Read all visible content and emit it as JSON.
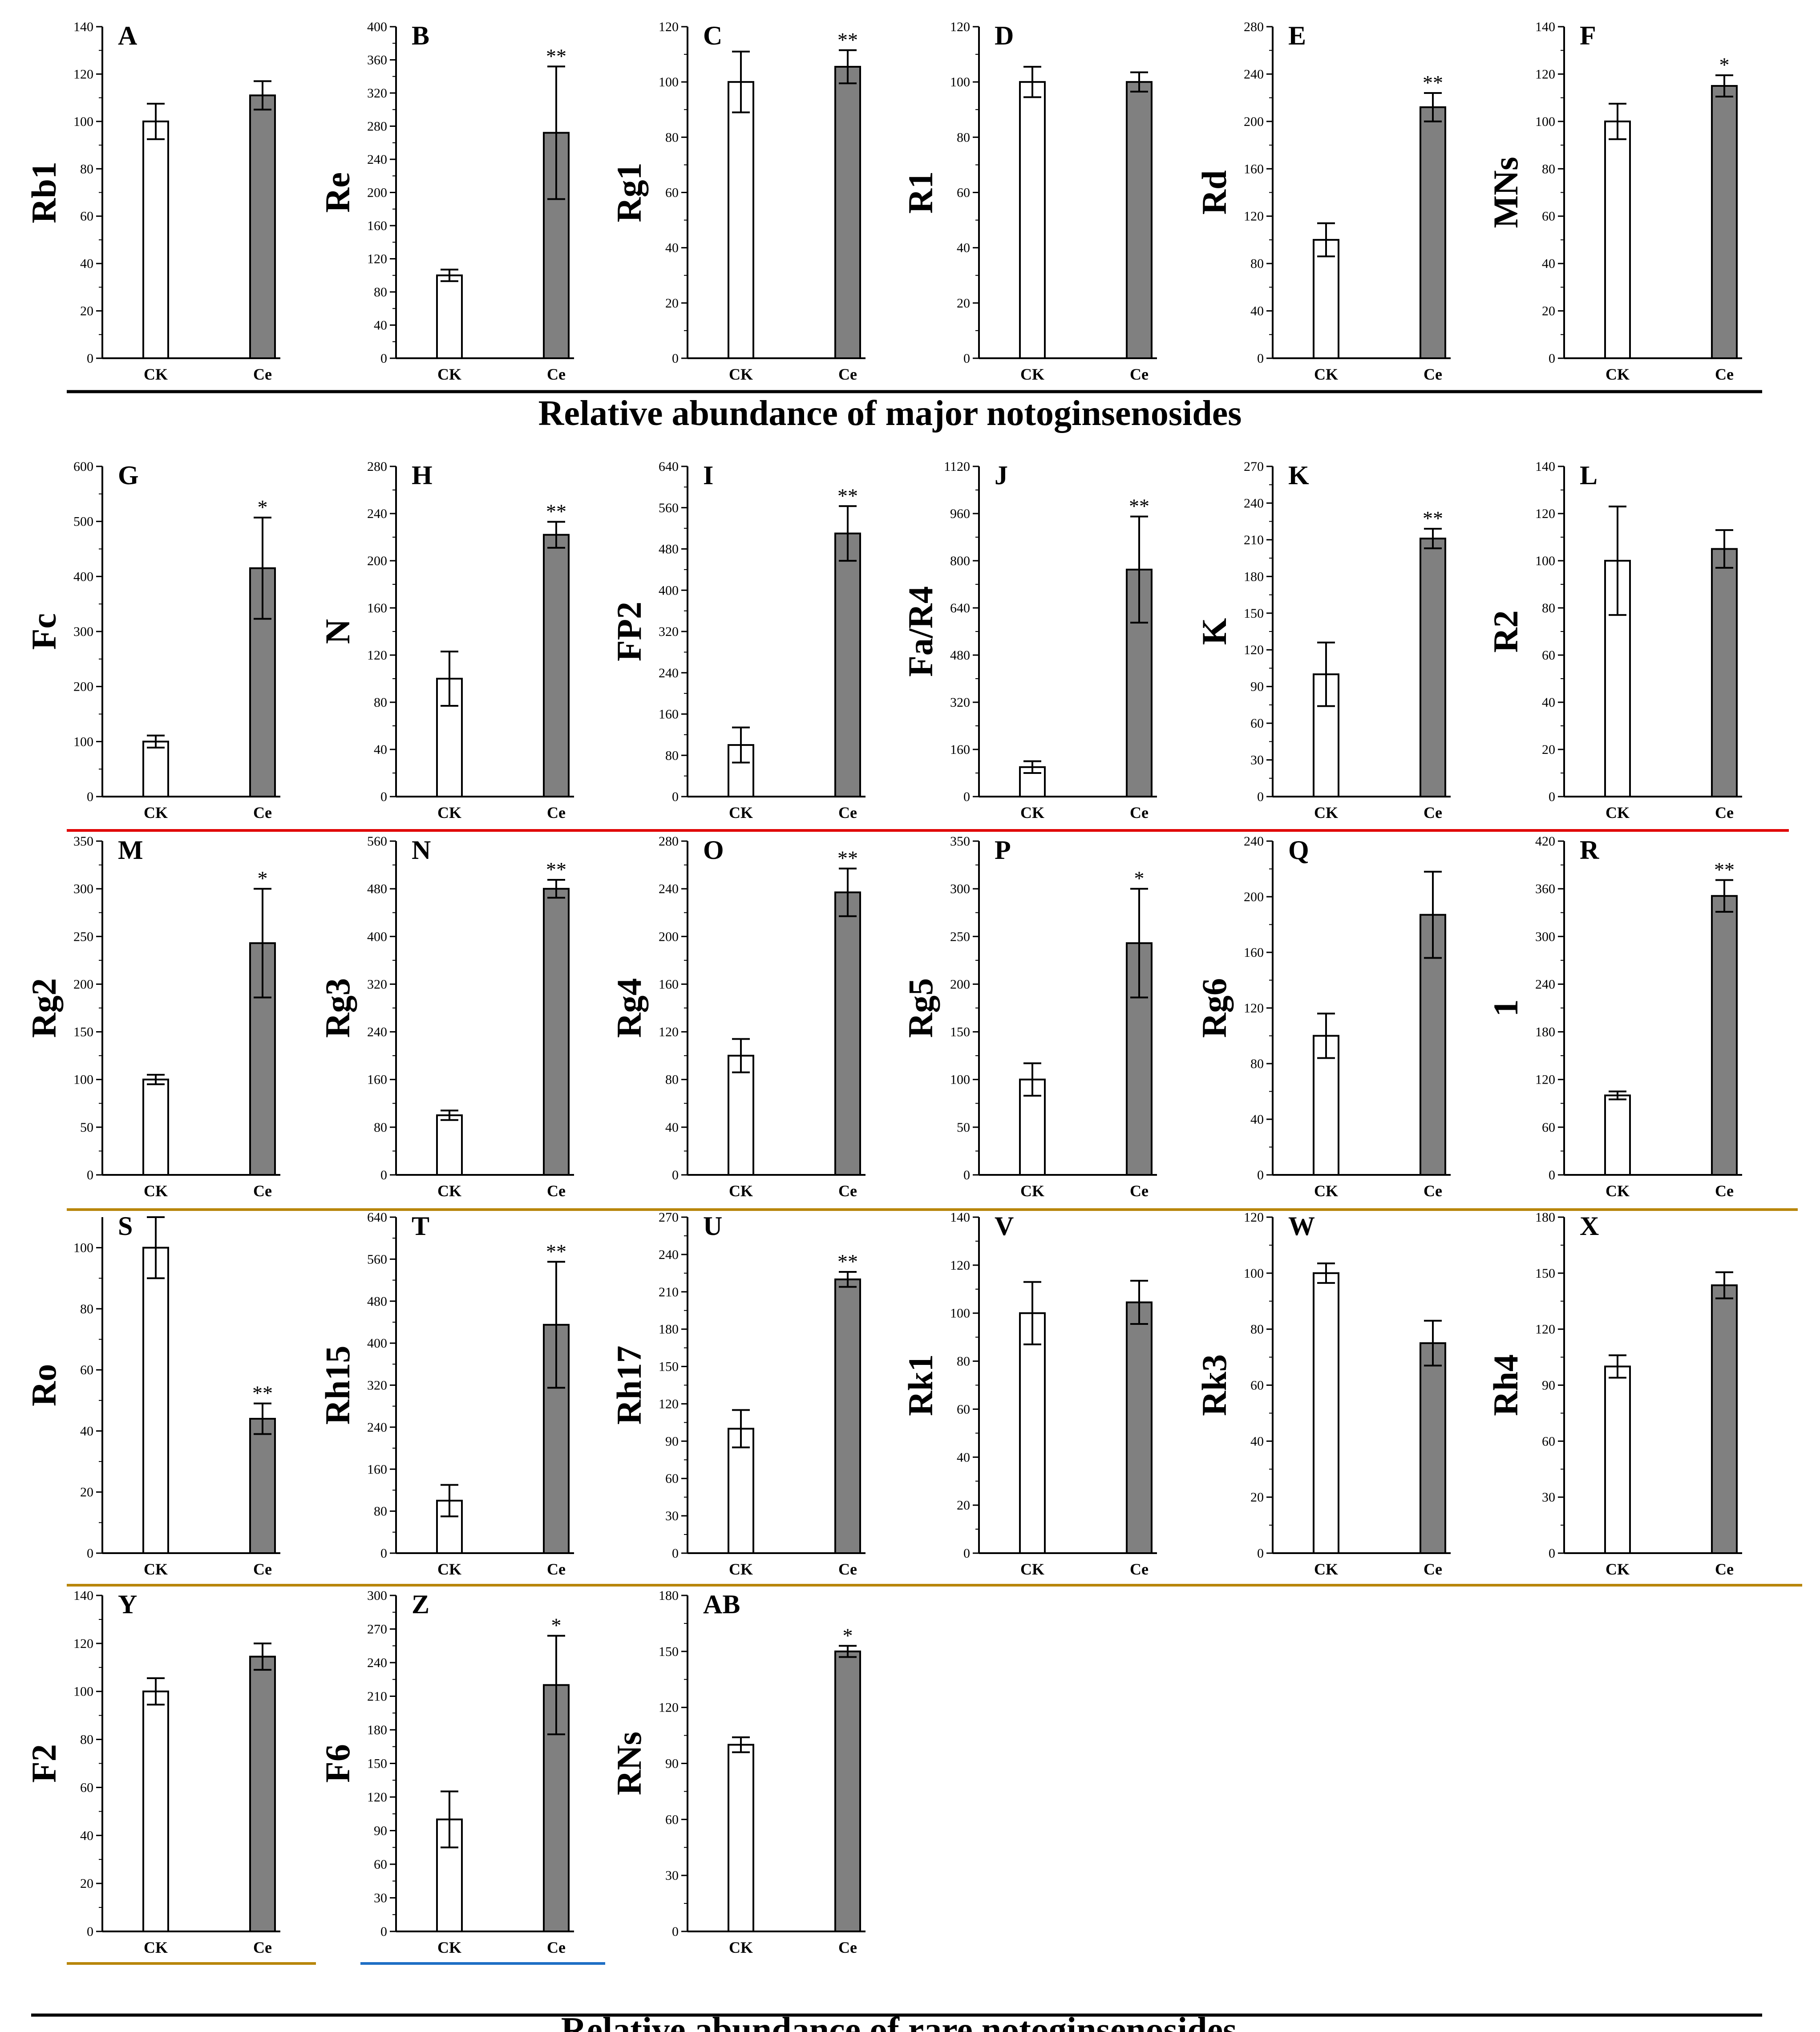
{
  "categories": [
    "CK",
    "Ce"
  ],
  "colors": {
    "ck_fill": "#ffffff",
    "ce_fill": "#808080",
    "stroke": "#000000",
    "divider_black": "#000000",
    "divider_red": "#e00000",
    "divider_gold": "#b8860b",
    "divider_blue": "#1f6fc5"
  },
  "captions": {
    "major": "Relative abundance of major notoginsenosides",
    "rare": "Relative abundance of  rare notoginsenosides"
  },
  "chart_data": [
    {
      "type": "bar",
      "panel": "A",
      "ylabel": "Rb1",
      "ylim": [
        0,
        140
      ],
      "yticks": [
        0,
        20,
        40,
        60,
        80,
        100,
        120,
        140
      ],
      "categories": [
        "CK",
        "Ce"
      ],
      "values": [
        100,
        111
      ],
      "errors": [
        7.5,
        6
      ],
      "sig": [
        "",
        ""
      ]
    },
    {
      "type": "bar",
      "panel": "B",
      "ylabel": "Re",
      "ylim": [
        0,
        400
      ],
      "yticks": [
        0,
        40,
        80,
        120,
        160,
        200,
        240,
        280,
        320,
        360,
        400
      ],
      "categories": [
        "CK",
        "Ce"
      ],
      "values": [
        100,
        272
      ],
      "errors": [
        7,
        80
      ],
      "sig": [
        "",
        "**"
      ]
    },
    {
      "type": "bar",
      "panel": "C",
      "ylabel": "Rg1",
      "ylim": [
        0,
        120
      ],
      "yticks": [
        0,
        20,
        40,
        60,
        80,
        100,
        120
      ],
      "categories": [
        "CK",
        "Ce"
      ],
      "values": [
        100,
        105.5
      ],
      "errors": [
        11,
        6
      ],
      "sig": [
        "",
        "**"
      ]
    },
    {
      "type": "bar",
      "panel": "D",
      "ylabel": "R1",
      "ylim": [
        0,
        120
      ],
      "yticks": [
        0,
        20,
        40,
        60,
        80,
        100,
        120
      ],
      "categories": [
        "CK",
        "Ce"
      ],
      "values": [
        100,
        100
      ],
      "errors": [
        5.5,
        3.5
      ],
      "sig": [
        "",
        ""
      ]
    },
    {
      "type": "bar",
      "panel": "E",
      "ylabel": "Rd",
      "ylim": [
        0,
        280
      ],
      "yticks": [
        0,
        40,
        80,
        120,
        160,
        200,
        240,
        280
      ],
      "categories": [
        "CK",
        "Ce"
      ],
      "values": [
        100,
        212
      ],
      "errors": [
        14,
        12
      ],
      "sig": [
        "",
        "**"
      ]
    },
    {
      "type": "bar",
      "panel": "F",
      "ylabel": "MNs",
      "ylim": [
        0,
        140
      ],
      "yticks": [
        0,
        20,
        40,
        60,
        80,
        100,
        120,
        140
      ],
      "categories": [
        "CK",
        "Ce"
      ],
      "values": [
        100,
        115
      ],
      "errors": [
        7.5,
        4.5
      ],
      "sig": [
        "",
        "*"
      ]
    },
    {
      "type": "bar",
      "panel": "G",
      "ylabel": "Fc",
      "ylim": [
        0,
        600
      ],
      "yticks": [
        0,
        100,
        200,
        300,
        400,
        500,
        600
      ],
      "categories": [
        "CK",
        "Ce"
      ],
      "values": [
        100,
        415
      ],
      "errors": [
        11,
        92
      ],
      "sig": [
        "",
        "*"
      ]
    },
    {
      "type": "bar",
      "panel": "H",
      "ylabel": "N",
      "ylim": [
        0,
        280
      ],
      "yticks": [
        0,
        40,
        80,
        120,
        160,
        200,
        240,
        280
      ],
      "categories": [
        "CK",
        "Ce"
      ],
      "values": [
        100,
        222
      ],
      "errors": [
        23,
        11
      ],
      "sig": [
        "",
        "**"
      ]
    },
    {
      "type": "bar",
      "panel": "I",
      "ylabel": "FP2",
      "ylim": [
        0,
        640
      ],
      "yticks": [
        0,
        80,
        160,
        240,
        320,
        400,
        480,
        560,
        640
      ],
      "categories": [
        "CK",
        "Ce"
      ],
      "values": [
        100,
        510
      ],
      "errors": [
        34,
        53
      ],
      "sig": [
        "",
        "**"
      ]
    },
    {
      "type": "bar",
      "panel": "J",
      "ylabel": "Fa/R4",
      "ylim": [
        0,
        1120
      ],
      "yticks": [
        0,
        160,
        320,
        480,
        640,
        800,
        960,
        1120
      ],
      "categories": [
        "CK",
        "Ce"
      ],
      "values": [
        100,
        770
      ],
      "errors": [
        20,
        180
      ],
      "sig": [
        "",
        "**"
      ]
    },
    {
      "type": "bar",
      "panel": "K",
      "ylabel": "K",
      "ylim": [
        0,
        270
      ],
      "yticks": [
        0,
        30,
        60,
        90,
        120,
        150,
        180,
        210,
        240,
        270
      ],
      "categories": [
        "CK",
        "Ce"
      ],
      "values": [
        100,
        211
      ],
      "errors": [
        26,
        8
      ],
      "sig": [
        "",
        "**"
      ]
    },
    {
      "type": "bar",
      "panel": "L",
      "ylabel": "R2",
      "ylim": [
        0,
        140
      ],
      "yticks": [
        0,
        20,
        40,
        60,
        80,
        100,
        120,
        140
      ],
      "categories": [
        "CK",
        "Ce"
      ],
      "values": [
        100,
        105
      ],
      "errors": [
        23,
        8
      ],
      "sig": [
        "",
        ""
      ]
    },
    {
      "type": "bar",
      "panel": "M",
      "ylabel": "Rg2",
      "ylim": [
        0,
        350
      ],
      "yticks": [
        0,
        50,
        100,
        150,
        200,
        250,
        300,
        350
      ],
      "categories": [
        "CK",
        "Ce"
      ],
      "values": [
        100,
        243
      ],
      "errors": [
        5,
        57
      ],
      "sig": [
        "",
        "*"
      ]
    },
    {
      "type": "bar",
      "panel": "N",
      "ylabel": "Rg3",
      "ylim": [
        0,
        560
      ],
      "yticks": [
        0,
        80,
        160,
        240,
        320,
        400,
        480,
        560
      ],
      "categories": [
        "CK",
        "Ce"
      ],
      "values": [
        100,
        480
      ],
      "errors": [
        8,
        15
      ],
      "sig": [
        "",
        "**"
      ]
    },
    {
      "type": "bar",
      "panel": "O",
      "ylabel": "Rg4",
      "ylim": [
        0,
        280
      ],
      "yticks": [
        0,
        40,
        80,
        120,
        160,
        200,
        240,
        280
      ],
      "categories": [
        "CK",
        "Ce"
      ],
      "values": [
        100,
        237
      ],
      "errors": [
        14,
        20
      ],
      "sig": [
        "",
        "**"
      ]
    },
    {
      "type": "bar",
      "panel": "P",
      "ylabel": "Rg5",
      "ylim": [
        0,
        350
      ],
      "yticks": [
        0,
        50,
        100,
        150,
        200,
        250,
        300,
        350
      ],
      "categories": [
        "CK",
        "Ce"
      ],
      "values": [
        100,
        243
      ],
      "errors": [
        17,
        57
      ],
      "sig": [
        "",
        "*"
      ]
    },
    {
      "type": "bar",
      "panel": "Q",
      "ylabel": "Rg6",
      "ylim": [
        0,
        240
      ],
      "yticks": [
        0,
        40,
        80,
        120,
        160,
        200,
        240
      ],
      "categories": [
        "CK",
        "Ce"
      ],
      "values": [
        100,
        187
      ],
      "errors": [
        16,
        31
      ],
      "sig": [
        "",
        ""
      ]
    },
    {
      "type": "bar",
      "panel": "R",
      "ylabel": "1",
      "ylim": [
        0,
        420
      ],
      "yticks": [
        0,
        60,
        120,
        180,
        240,
        300,
        360,
        420
      ],
      "categories": [
        "CK",
        "Ce"
      ],
      "values": [
        100,
        351
      ],
      "errors": [
        5,
        20
      ],
      "sig": [
        "",
        "**"
      ]
    },
    {
      "type": "bar",
      "panel": "S",
      "ylabel": "Ro",
      "ylim": [
        0,
        110
      ],
      "yticks": [
        0,
        20,
        40,
        60,
        80,
        100
      ],
      "categories": [
        "CK",
        "Ce"
      ],
      "values": [
        100,
        44
      ],
      "errors": [
        10,
        5
      ],
      "sig": [
        "",
        "**"
      ]
    },
    {
      "type": "bar",
      "panel": "T",
      "ylabel": "Rh15",
      "ylim": [
        0,
        640
      ],
      "yticks": [
        0,
        80,
        160,
        240,
        320,
        400,
        480,
        560,
        640
      ],
      "categories": [
        "CK",
        "Ce"
      ],
      "values": [
        100,
        435
      ],
      "errors": [
        30,
        120
      ],
      "sig": [
        "",
        "**"
      ]
    },
    {
      "type": "bar",
      "panel": "U",
      "ylabel": "Rh17",
      "ylim": [
        0,
        270
      ],
      "yticks": [
        0,
        30,
        60,
        90,
        120,
        150,
        180,
        210,
        240,
        270
      ],
      "categories": [
        "CK",
        "Ce"
      ],
      "values": [
        100,
        220
      ],
      "errors": [
        15,
        6
      ],
      "sig": [
        "",
        "**"
      ]
    },
    {
      "type": "bar",
      "panel": "V",
      "ylabel": "Rk1",
      "ylim": [
        0,
        140
      ],
      "yticks": [
        0,
        20,
        40,
        60,
        80,
        100,
        120,
        140
      ],
      "categories": [
        "CK",
        "Ce"
      ],
      "values": [
        100,
        104.5
      ],
      "errors": [
        13,
        9
      ],
      "sig": [
        "",
        ""
      ]
    },
    {
      "type": "bar",
      "panel": "W",
      "ylabel": "Rk3",
      "ylim": [
        0,
        120
      ],
      "yticks": [
        0,
        20,
        40,
        60,
        80,
        100,
        120
      ],
      "categories": [
        "CK",
        "Ce"
      ],
      "values": [
        100,
        75
      ],
      "errors": [
        3.5,
        8
      ],
      "sig": [
        "",
        ""
      ]
    },
    {
      "type": "bar",
      "panel": "X",
      "ylabel": "Rh4",
      "ylim": [
        0,
        180
      ],
      "yticks": [
        0,
        30,
        60,
        90,
        120,
        150,
        180
      ],
      "categories": [
        "CK",
        "Ce"
      ],
      "values": [
        100,
        143.5
      ],
      "errors": [
        6,
        7
      ],
      "sig": [
        "",
        ""
      ]
    },
    {
      "type": "bar",
      "panel": "Y",
      "ylabel": "F2",
      "ylim": [
        0,
        140
      ],
      "yticks": [
        0,
        20,
        40,
        60,
        80,
        100,
        120,
        140
      ],
      "categories": [
        "CK",
        "Ce"
      ],
      "values": [
        100,
        114.5
      ],
      "errors": [
        5.5,
        5.5
      ],
      "sig": [
        "",
        ""
      ]
    },
    {
      "type": "bar",
      "panel": "Z",
      "ylabel": "F6",
      "ylim": [
        0,
        300
      ],
      "yticks": [
        0,
        30,
        60,
        90,
        120,
        150,
        180,
        210,
        240,
        270,
        300
      ],
      "categories": [
        "CK",
        "Ce"
      ],
      "values": [
        100,
        220
      ],
      "errors": [
        25,
        44
      ],
      "sig": [
        "",
        "*"
      ]
    },
    {
      "type": "bar",
      "panel": "AB",
      "ylabel": "RNs",
      "ylim": [
        0,
        180
      ],
      "yticks": [
        0,
        30,
        60,
        90,
        120,
        150,
        180
      ],
      "categories": [
        "CK",
        "Ce"
      ],
      "values": [
        100,
        150
      ],
      "errors": [
        4,
        3
      ],
      "sig": [
        "",
        "*"
      ]
    }
  ]
}
